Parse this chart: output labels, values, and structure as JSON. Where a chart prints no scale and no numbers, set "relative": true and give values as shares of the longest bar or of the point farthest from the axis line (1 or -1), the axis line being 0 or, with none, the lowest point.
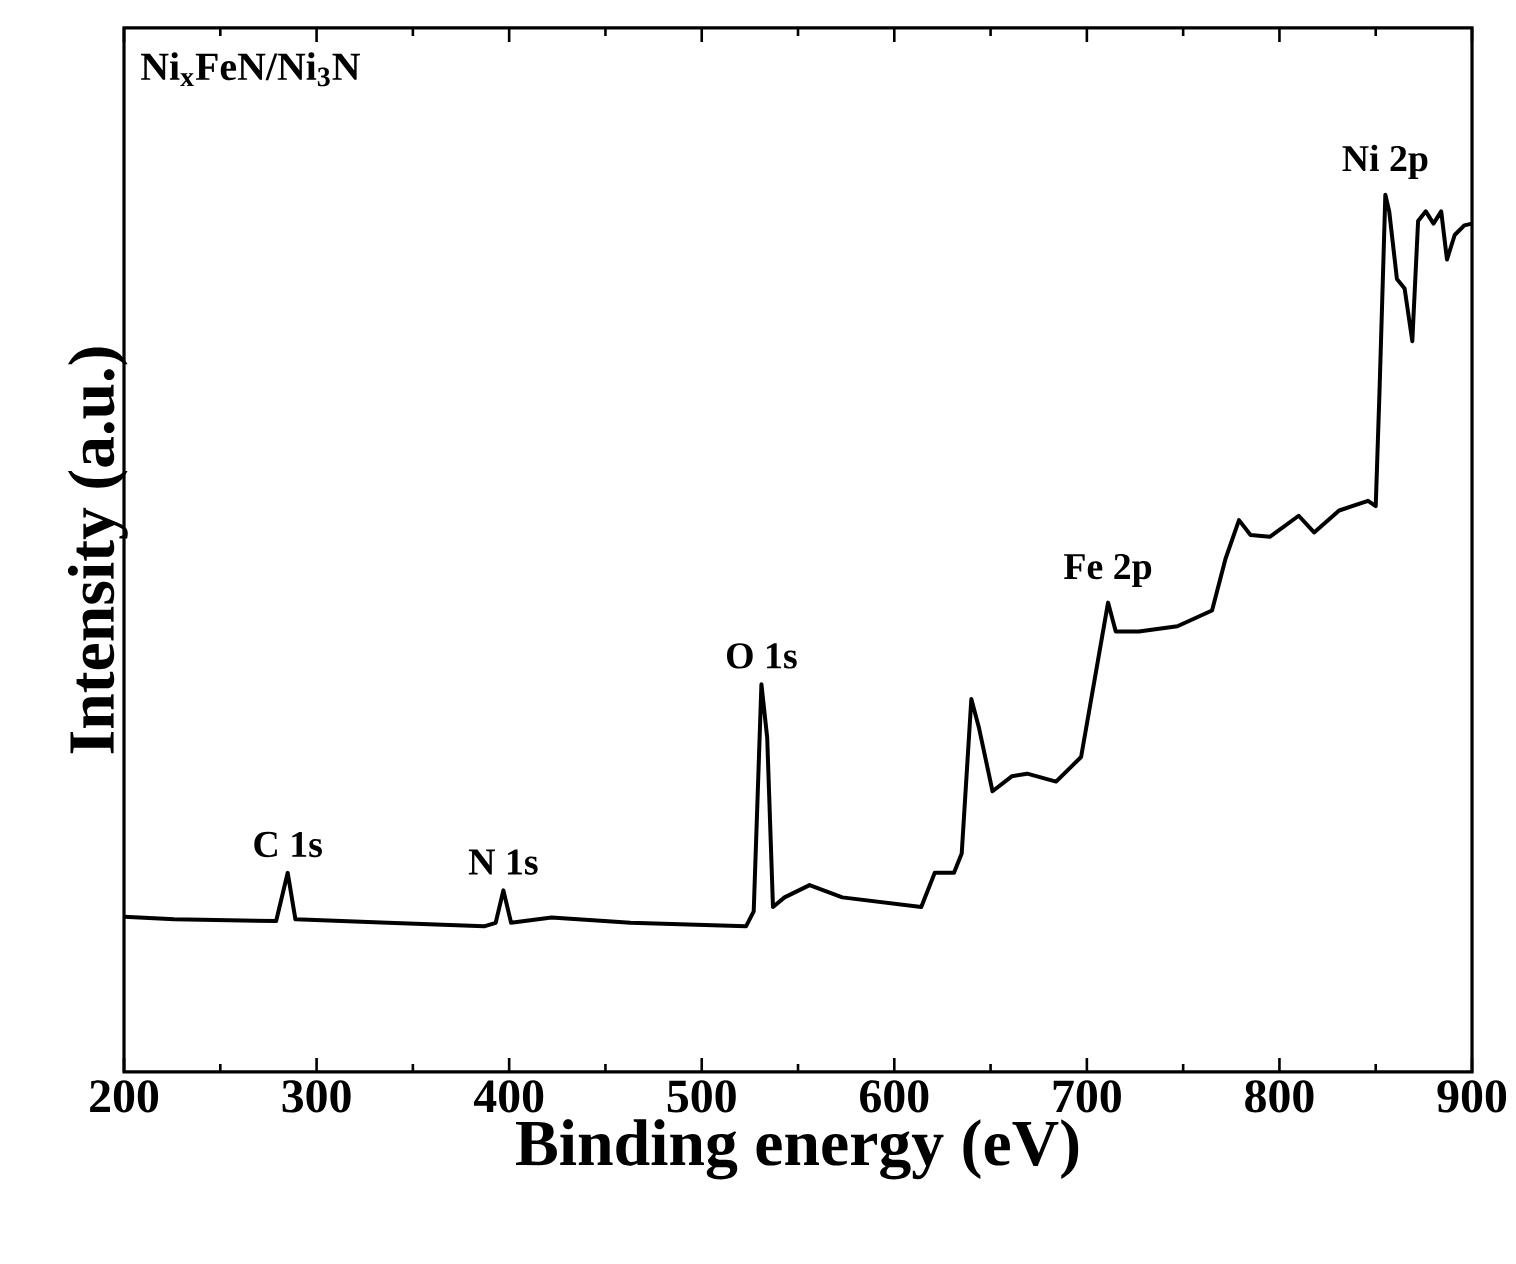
{
  "chart_data": {
    "type": "line",
    "relative": true,
    "title": "Ni$_{x}$FeN/Ni$_{3}$N",
    "xlabel": "Binding energy (eV)",
    "ylabel": "Intensity (a.u.)",
    "xlim": [
      200,
      900
    ],
    "xticks": [
      200,
      300,
      400,
      500,
      600,
      700,
      800,
      900
    ],
    "color": "#000000",
    "marker": "none",
    "line_style": "solid",
    "grid": false,
    "x": [
      200,
      226,
      279,
      285,
      289,
      337,
      387,
      393,
      397,
      401,
      422,
      463,
      523,
      527,
      531,
      534,
      537,
      543,
      556,
      573,
      614,
      621,
      631,
      635,
      640,
      644,
      651,
      661,
      669,
      684,
      697,
      704,
      711,
      715,
      727,
      747,
      765,
      772,
      779,
      785,
      795,
      810,
      818,
      831,
      846,
      850,
      852,
      855,
      857,
      861,
      865,
      869,
      872,
      876,
      880,
      884,
      887,
      891,
      896,
      900
    ],
    "values": [
      0.177,
      0.174,
      0.172,
      0.227,
      0.174,
      0.17,
      0.166,
      0.17,
      0.207,
      0.17,
      0.176,
      0.17,
      0.166,
      0.183,
      0.442,
      0.381,
      0.188,
      0.199,
      0.213,
      0.199,
      0.188,
      0.227,
      0.227,
      0.249,
      0.425,
      0.392,
      0.32,
      0.337,
      0.34,
      0.331,
      0.359,
      0.447,
      0.535,
      0.502,
      0.502,
      0.508,
      0.526,
      0.585,
      0.629,
      0.612,
      0.61,
      0.634,
      0.615,
      0.64,
      0.651,
      0.645,
      0.778,
      1.0,
      0.981,
      0.904,
      0.893,
      0.833,
      0.97,
      0.981,
      0.967,
      0.981,
      0.926,
      0.954,
      0.965,
      0.967
    ],
    "annotations": [
      {
        "text": "C 1s",
        "x": 285,
        "y": 0.227
      },
      {
        "text": "N 1s",
        "x": 397,
        "y": 0.207
      },
      {
        "text": "O 1s",
        "x": 531,
        "y": 0.442
      },
      {
        "text": "Fe 2p",
        "x": 711,
        "y": 0.535
      },
      {
        "text": "Ni 2p",
        "x": 855,
        "y": 1.0
      }
    ]
  }
}
